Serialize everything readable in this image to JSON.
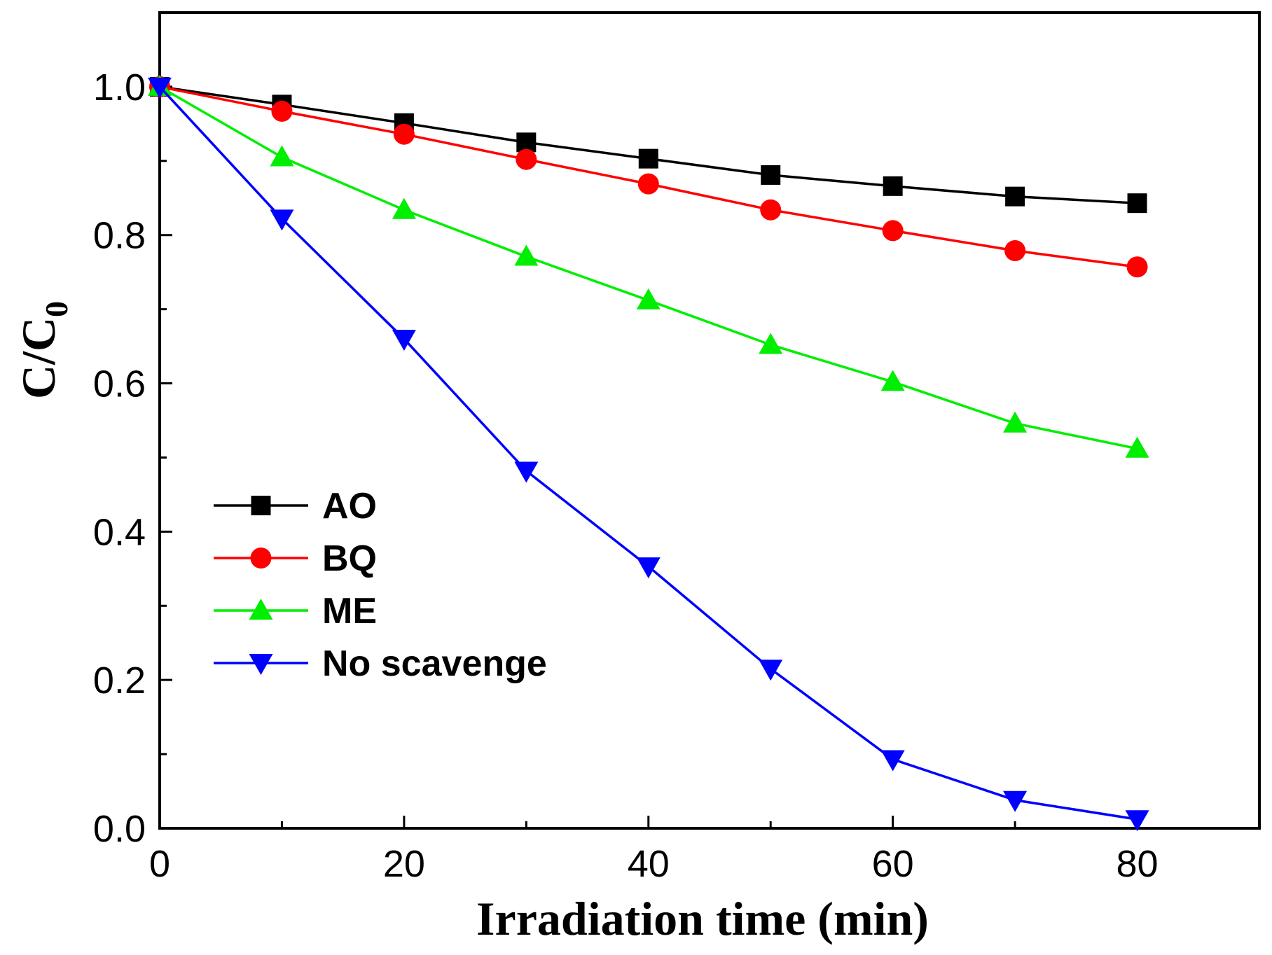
{
  "chart_data": {
    "type": "line",
    "xlabel": "Irradiation time (min)",
    "ylabel_main": "C/C",
    "ylabel_sub": "0",
    "xlim": [
      0,
      90
    ],
    "ylim": [
      0,
      1.1
    ],
    "xticks": [
      0,
      20,
      40,
      60,
      80
    ],
    "xtick_labels": [
      "0",
      "20",
      "40",
      "60",
      "80"
    ],
    "yticks": [
      0.0,
      0.2,
      0.4,
      0.6,
      0.8,
      1.0
    ],
    "ytick_labels": [
      "0.0",
      "0.2",
      "0.4",
      "0.6",
      "0.8",
      "1.0"
    ],
    "grid": false,
    "legend_position": "left",
    "x": [
      0,
      10,
      20,
      30,
      40,
      50,
      60,
      70,
      80
    ],
    "series": [
      {
        "name": "AO",
        "color": "#000000",
        "marker": "square",
        "values": [
          1.0,
          0.976,
          0.951,
          0.925,
          0.903,
          0.881,
          0.866,
          0.852,
          0.843
        ]
      },
      {
        "name": "BQ",
        "color": "#ff0000",
        "marker": "circle",
        "values": [
          1.0,
          0.967,
          0.936,
          0.902,
          0.869,
          0.834,
          0.806,
          0.779,
          0.757
        ]
      },
      {
        "name": "ME",
        "color": "#00ee00",
        "marker": "triangle-up",
        "values": [
          1.0,
          0.905,
          0.834,
          0.771,
          0.712,
          0.652,
          0.602,
          0.546,
          0.512
        ]
      },
      {
        "name": "No scavenge",
        "color": "#0000ff",
        "marker": "triangle-down",
        "values": [
          1.0,
          0.822,
          0.66,
          0.482,
          0.353,
          0.215,
          0.093,
          0.038,
          0.012
        ]
      }
    ]
  }
}
